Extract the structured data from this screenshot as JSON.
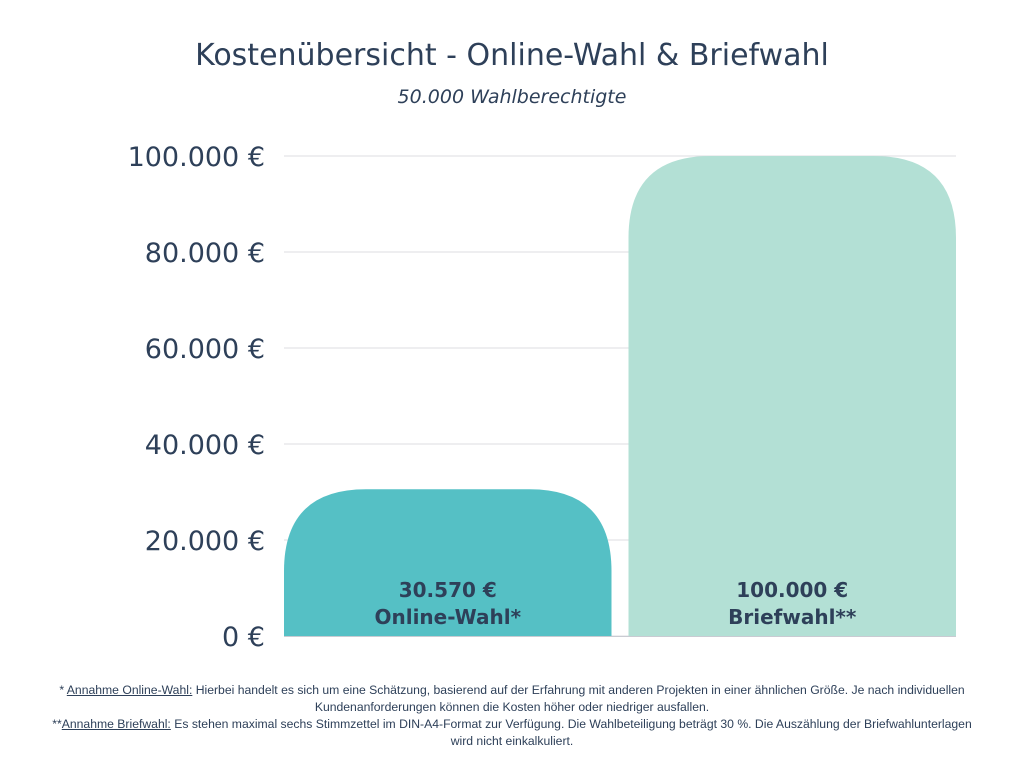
{
  "chart_data": {
    "type": "bar",
    "title": "Kostenübersicht - Online-Wahl & Briefwahl",
    "subtitle": "50.000 Wahlberechtigte",
    "categories": [
      "Online-Wahl*",
      "Briefwahl**"
    ],
    "values": [
      30570,
      100000
    ],
    "data_labels": [
      "30.570 €",
      "100.000 €"
    ],
    "colors": [
      "#55c0c5",
      "#b3e0d5"
    ],
    "ylim": [
      0,
      100000
    ],
    "yticks": [
      0,
      20000,
      40000,
      60000,
      80000,
      100000
    ],
    "ytick_labels": [
      "0 €",
      "20.000 €",
      "40.000 €",
      "60.000 €",
      "80.000 €",
      "100.000 €"
    ],
    "grid": true,
    "xlabel": "",
    "ylabel": ""
  },
  "footnotes": [
    {
      "prefix": "* ",
      "label": "Annahme Online-Wahl:",
      "text": " Hierbei handelt es sich um eine Schätzung, basierend auf der Erfahrung mit anderen Projekten in einer ähnlichen Größe. Je nach individuellen Kundenanforderungen können die Kosten höher oder niedriger ausfallen."
    },
    {
      "prefix": "**",
      "label": "Annahme Briefwahl:",
      "text": " Es stehen maximal sechs Stimmzettel im DIN-A4-Format zur Verfügung. Die Wahlbeteiligung beträgt 30 %. Die Auszählung der Briefwahlunterlagen wird nicht einkalkuliert."
    }
  ]
}
